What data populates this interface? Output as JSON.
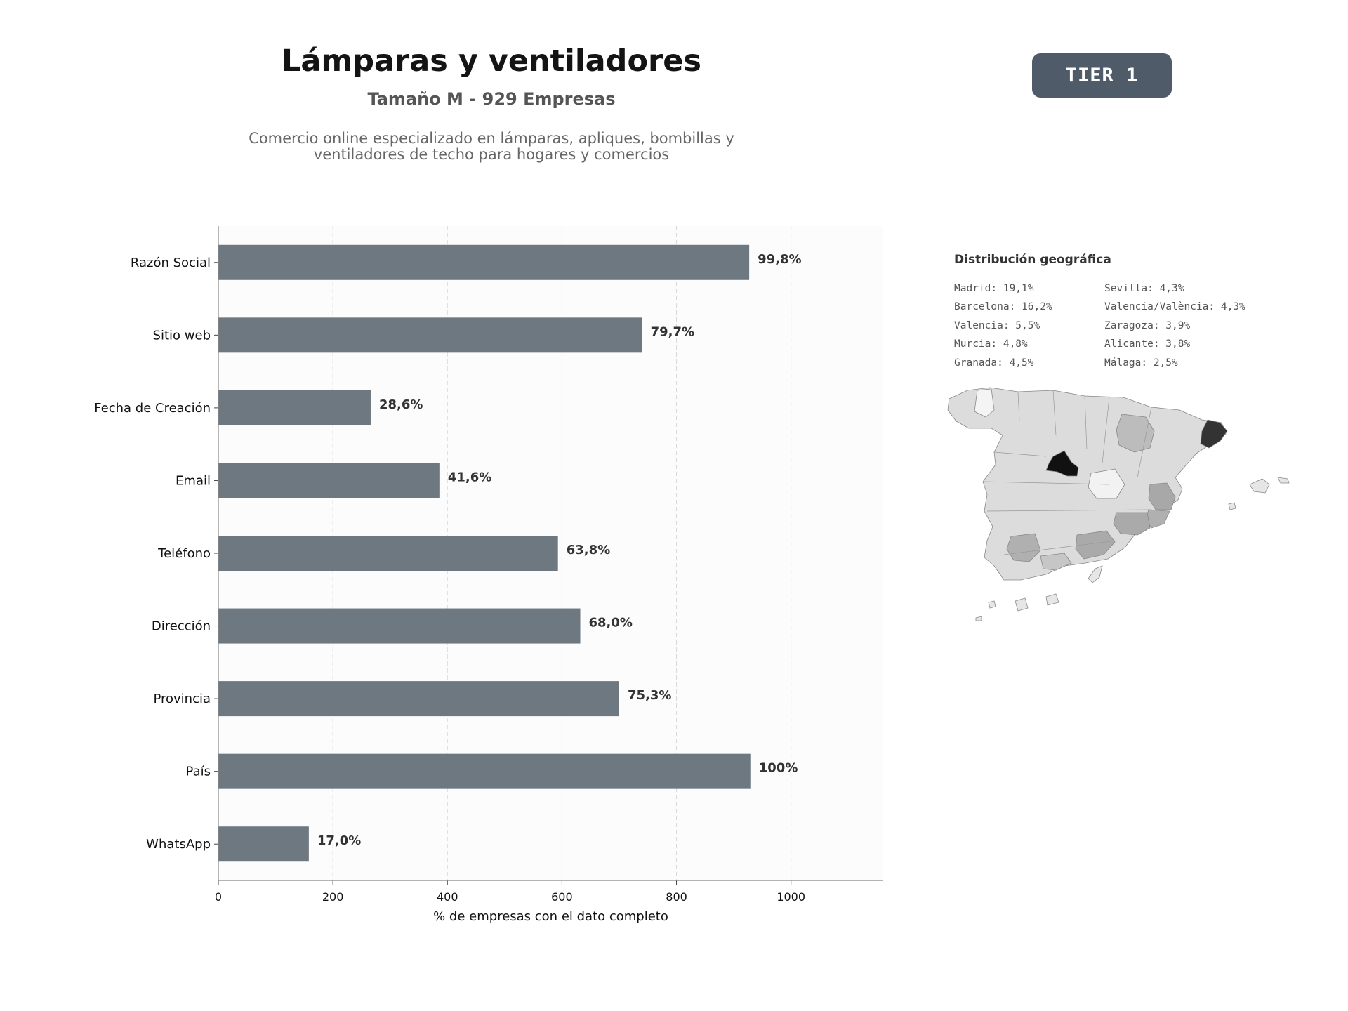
{
  "header": {
    "title": "Lámparas y ventiladores",
    "subtitle": "Tamaño M - 929 Empresas",
    "description_line1": "Comercio online especializado en lámparas, apliques, bombillas y",
    "description_line2": "ventiladores de techo para hogares y comercios",
    "tier_label": "TIER 1"
  },
  "chart_data": {
    "type": "bar",
    "orientation": "horizontal",
    "categories": [
      "Razón Social",
      "Sitio web",
      "Fecha de Creación",
      "Email",
      "Teléfono",
      "Dirección",
      "Provincia",
      "País",
      "WhatsApp"
    ],
    "values": [
      927,
      740,
      266,
      386,
      593,
      632,
      700,
      929,
      158
    ],
    "data_labels": [
      "99,8%",
      "79,7%",
      "28,6%",
      "41,6%",
      "63,8%",
      "68,0%",
      "75,3%",
      "100%",
      "17,0%"
    ],
    "xlabel": "% de empresas con el dato completo",
    "ylabel": "",
    "xlim": [
      0,
      1161
    ],
    "xticks": [
      0,
      200,
      400,
      600,
      800,
      1000
    ],
    "grid": "vertical dashed",
    "bar_color": "#6e7881"
  },
  "geo": {
    "title": "Distribución geográfica",
    "items": [
      "Madrid: 19,1%",
      "Sevilla: 4,3%",
      "Barcelona: 16,2%",
      "Valencia/València: 4,3%",
      "Valencia: 5,5%",
      "Zaragoza: 3,9%",
      "Murcia: 4,8%",
      "Alicante: 3,8%",
      "Granada: 4,5%",
      "Málaga: 2,5%"
    ]
  }
}
